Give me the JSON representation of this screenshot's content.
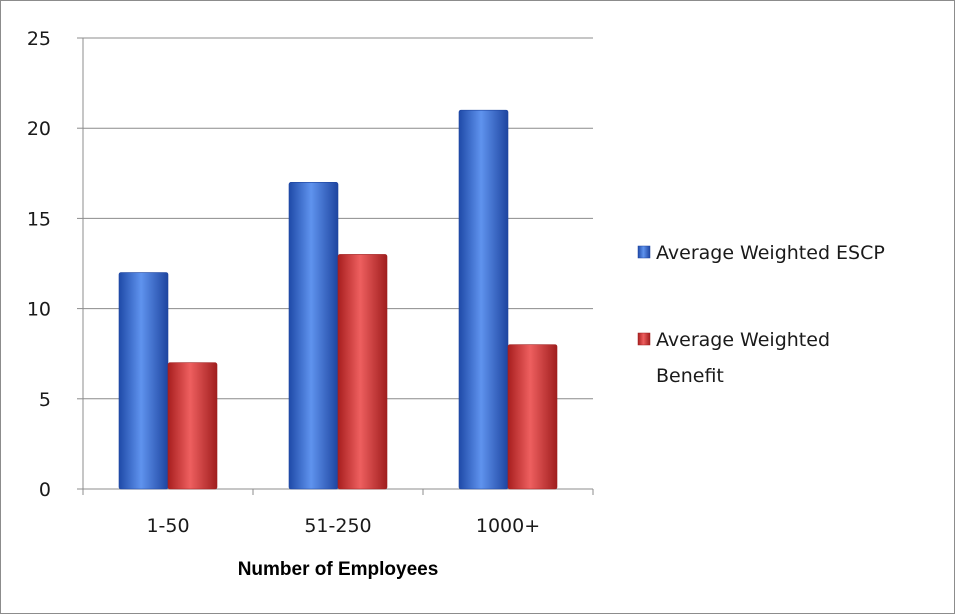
{
  "chart_data": {
    "type": "bar",
    "title": "",
    "xlabel": "Number of Employees",
    "ylabel": "",
    "categories": [
      "1-50",
      "51-250",
      "1000+"
    ],
    "series": [
      {
        "name": "Average Weighted ESCP",
        "values": [
          12,
          17,
          21
        ],
        "color": "#3b6fd4"
      },
      {
        "name": "Average Weighted Benefit",
        "values": [
          7,
          13,
          8
        ],
        "color": "#d43b3b"
      }
    ],
    "ylim": [
      0,
      25
    ],
    "yticks": [
      "0",
      "5",
      "10",
      "15",
      "20",
      "25"
    ],
    "grid": true,
    "legend_position": "right"
  }
}
